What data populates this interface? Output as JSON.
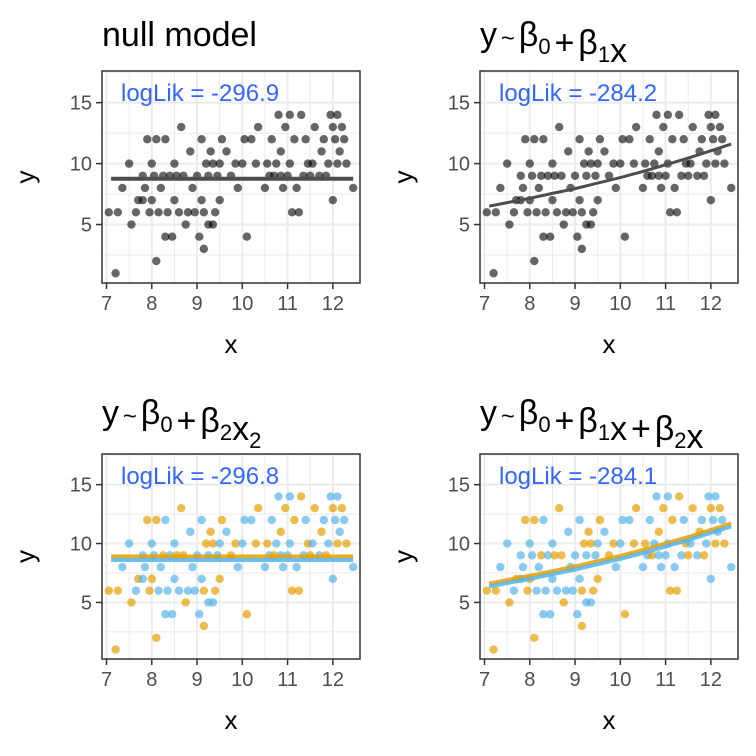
{
  "colors": {
    "black_points": "#000000",
    "orange": "#E69F00",
    "sky_blue": "#56B4E9",
    "fit_line": "#4d4d4d",
    "loglik_text": "#3366FF",
    "panel_border": "#333333",
    "grid": "#ebebeb"
  },
  "axes": {
    "xlabel": "x",
    "ylabel": "y",
    "xlim": [
      6.9,
      12.6
    ],
    "ylim": [
      0.2,
      17.6
    ],
    "xticks": [
      7,
      8,
      9,
      10,
      11,
      12
    ],
    "yticks": [
      5,
      10,
      15
    ],
    "grid": true
  },
  "chart_data": [
    {
      "type": "scatter",
      "title": "null model",
      "loglik": "logLik = -296.9",
      "color_groups": false,
      "fit": {
        "kind": "line",
        "x": [
          7.1,
          12.45
        ],
        "y": [
          8.75,
          8.75
        ]
      }
    },
    {
      "type": "scatter",
      "title": "y ~ β0 + β1x",
      "loglik": "logLik = -284.2",
      "color_groups": false,
      "fit": {
        "kind": "curve",
        "x": [
          7.1,
          7.5,
          8.0,
          8.5,
          9.0,
          9.5,
          10.0,
          10.5,
          11.0,
          11.5,
          12.0,
          12.45
        ],
        "y": [
          6.5,
          6.8,
          7.15,
          7.55,
          7.95,
          8.4,
          8.85,
          9.35,
          9.9,
          10.45,
          11.05,
          11.6
        ]
      }
    },
    {
      "type": "scatter",
      "title": "y ~ β0 + β2x2",
      "loglik": "logLik = -296.8",
      "color_groups": true,
      "fit": {
        "kind": "pair",
        "x": [
          7.1,
          12.45
        ],
        "y_orange": [
          8.9,
          8.9
        ],
        "y_blue": [
          8.6,
          8.6
        ]
      }
    },
    {
      "type": "scatter",
      "title": "y ~ β0 + β1x + β2x",
      "loglik": "logLik = -284.1",
      "color_groups": true,
      "fit": {
        "kind": "pair-curve",
        "x": [
          7.1,
          7.5,
          8.0,
          8.5,
          9.0,
          9.5,
          10.0,
          10.5,
          11.0,
          11.5,
          12.0,
          12.45
        ],
        "y_orange": [
          6.6,
          6.9,
          7.25,
          7.65,
          8.05,
          8.5,
          8.95,
          9.45,
          10.0,
          10.55,
          11.15,
          11.7
        ],
        "y_blue": [
          6.35,
          6.65,
          7.0,
          7.4,
          7.8,
          8.25,
          8.7,
          9.2,
          9.75,
          10.3,
          10.9,
          11.45
        ]
      }
    }
  ],
  "points": [
    {
      "x": 7.05,
      "y": 6,
      "g": "o"
    },
    {
      "x": 7.2,
      "y": 1,
      "g": "o"
    },
    {
      "x": 7.25,
      "y": 6,
      "g": "o"
    },
    {
      "x": 7.35,
      "y": 8,
      "g": "b"
    },
    {
      "x": 7.5,
      "y": 10,
      "g": "b"
    },
    {
      "x": 7.55,
      "y": 5,
      "g": "o"
    },
    {
      "x": 7.65,
      "y": 6,
      "g": "b"
    },
    {
      "x": 7.7,
      "y": 7,
      "g": "o"
    },
    {
      "x": 7.8,
      "y": 7,
      "g": "b"
    },
    {
      "x": 7.8,
      "y": 9,
      "g": "b"
    },
    {
      "x": 7.85,
      "y": 8,
      "g": "b"
    },
    {
      "x": 7.9,
      "y": 12,
      "g": "o"
    },
    {
      "x": 7.95,
      "y": 6,
      "g": "o"
    },
    {
      "x": 8.0,
      "y": 7,
      "g": "o"
    },
    {
      "x": 8.0,
      "y": 10,
      "g": "b"
    },
    {
      "x": 8.05,
      "y": 9,
      "g": "b"
    },
    {
      "x": 8.1,
      "y": 2,
      "g": "o"
    },
    {
      "x": 8.1,
      "y": 12,
      "g": "o"
    },
    {
      "x": 8.15,
      "y": 6,
      "g": "b"
    },
    {
      "x": 8.2,
      "y": 8,
      "g": "b"
    },
    {
      "x": 8.25,
      "y": 9,
      "g": "o"
    },
    {
      "x": 8.3,
      "y": 4,
      "g": "b"
    },
    {
      "x": 8.3,
      "y": 12,
      "g": "b"
    },
    {
      "x": 8.35,
      "y": 6,
      "g": "b"
    },
    {
      "x": 8.4,
      "y": 9,
      "g": "b"
    },
    {
      "x": 8.45,
      "y": 4,
      "g": "b"
    },
    {
      "x": 8.5,
      "y": 7,
      "g": "b"
    },
    {
      "x": 8.5,
      "y": 10,
      "g": "b"
    },
    {
      "x": 8.55,
      "y": 9,
      "g": "o"
    },
    {
      "x": 8.6,
      "y": 6,
      "g": "b"
    },
    {
      "x": 8.65,
      "y": 13,
      "g": "o"
    },
    {
      "x": 8.7,
      "y": 9,
      "g": "o"
    },
    {
      "x": 8.75,
      "y": 5,
      "g": "o"
    },
    {
      "x": 8.8,
      "y": 6,
      "g": "b"
    },
    {
      "x": 8.85,
      "y": 11,
      "g": "b"
    },
    {
      "x": 8.9,
      "y": 8,
      "g": "b"
    },
    {
      "x": 8.95,
      "y": 6,
      "g": "b"
    },
    {
      "x": 9.0,
      "y": 9,
      "g": "b"
    },
    {
      "x": 9.05,
      "y": 4,
      "g": "b"
    },
    {
      "x": 9.1,
      "y": 7,
      "g": "b"
    },
    {
      "x": 9.1,
      "y": 12,
      "g": "b"
    },
    {
      "x": 9.15,
      "y": 6,
      "g": "o"
    },
    {
      "x": 9.15,
      "y": 3,
      "g": "o"
    },
    {
      "x": 9.2,
      "y": 10,
      "g": "o"
    },
    {
      "x": 9.25,
      "y": 5,
      "g": "b"
    },
    {
      "x": 9.25,
      "y": 9,
      "g": "b"
    },
    {
      "x": 9.3,
      "y": 11,
      "g": "o"
    },
    {
      "x": 9.35,
      "y": 5,
      "g": "b"
    },
    {
      "x": 9.35,
      "y": 10,
      "g": "o"
    },
    {
      "x": 9.4,
      "y": 6,
      "g": "o"
    },
    {
      "x": 9.45,
      "y": 9,
      "g": "b"
    },
    {
      "x": 9.5,
      "y": 7,
      "g": "o"
    },
    {
      "x": 9.5,
      "y": 10,
      "g": "b"
    },
    {
      "x": 9.55,
      "y": 12,
      "g": "o"
    },
    {
      "x": 9.65,
      "y": 11,
      "g": "b"
    },
    {
      "x": 9.75,
      "y": 9,
      "g": "o"
    },
    {
      "x": 9.85,
      "y": 10,
      "g": "o"
    },
    {
      "x": 9.9,
      "y": 8,
      "g": "b"
    },
    {
      "x": 10.0,
      "y": 10,
      "g": "b"
    },
    {
      "x": 10.05,
      "y": 12,
      "g": "b"
    },
    {
      "x": 10.1,
      "y": 4,
      "g": "o"
    },
    {
      "x": 10.2,
      "y": 12,
      "g": "b"
    },
    {
      "x": 10.3,
      "y": 10,
      "g": "o"
    },
    {
      "x": 10.35,
      "y": 13,
      "g": "o"
    },
    {
      "x": 10.5,
      "y": 8,
      "g": "b"
    },
    {
      "x": 10.55,
      "y": 10,
      "g": "o"
    },
    {
      "x": 10.6,
      "y": 9,
      "g": "b"
    },
    {
      "x": 10.65,
      "y": 12,
      "g": "b"
    },
    {
      "x": 10.7,
      "y": 9,
      "g": "o"
    },
    {
      "x": 10.75,
      "y": 10,
      "g": "b"
    },
    {
      "x": 10.8,
      "y": 14,
      "g": "b"
    },
    {
      "x": 10.85,
      "y": 9,
      "g": "b"
    },
    {
      "x": 10.85,
      "y": 11,
      "g": "o"
    },
    {
      "x": 10.9,
      "y": 8,
      "g": "b"
    },
    {
      "x": 10.95,
      "y": 13,
      "g": "o"
    },
    {
      "x": 11.0,
      "y": 9,
      "g": "b"
    },
    {
      "x": 11.05,
      "y": 10,
      "g": "b"
    },
    {
      "x": 11.05,
      "y": 14,
      "g": "b"
    },
    {
      "x": 11.1,
      "y": 6,
      "g": "o"
    },
    {
      "x": 11.15,
      "y": 12,
      "g": "o"
    },
    {
      "x": 11.2,
      "y": 8,
      "g": "b"
    },
    {
      "x": 11.25,
      "y": 6,
      "g": "o"
    },
    {
      "x": 11.3,
      "y": 14,
      "g": "o"
    },
    {
      "x": 11.35,
      "y": 9,
      "g": "b"
    },
    {
      "x": 11.4,
      "y": 12,
      "g": "b"
    },
    {
      "x": 11.45,
      "y": 10,
      "g": "o"
    },
    {
      "x": 11.5,
      "y": 9,
      "g": "o"
    },
    {
      "x": 11.55,
      "y": 10,
      "g": "b"
    },
    {
      "x": 11.6,
      "y": 13,
      "g": "o"
    },
    {
      "x": 11.7,
      "y": 9,
      "g": "b"
    },
    {
      "x": 11.75,
      "y": 11,
      "g": "o"
    },
    {
      "x": 11.8,
      "y": 12,
      "g": "b"
    },
    {
      "x": 11.85,
      "y": 9,
      "g": "o"
    },
    {
      "x": 11.9,
      "y": 10,
      "g": "b"
    },
    {
      "x": 11.95,
      "y": 14,
      "g": "b"
    },
    {
      "x": 12.0,
      "y": 13,
      "g": "o"
    },
    {
      "x": 12.0,
      "y": 7,
      "g": "b"
    },
    {
      "x": 12.05,
      "y": 12,
      "g": "b"
    },
    {
      "x": 12.1,
      "y": 14,
      "g": "b"
    },
    {
      "x": 12.1,
      "y": 10,
      "g": "o"
    },
    {
      "x": 12.15,
      "y": 11,
      "g": "b"
    },
    {
      "x": 12.2,
      "y": 13,
      "g": "o"
    },
    {
      "x": 12.25,
      "y": 12,
      "g": "b"
    },
    {
      "x": 12.3,
      "y": 10,
      "g": "o"
    },
    {
      "x": 12.45,
      "y": 8,
      "g": "b"
    }
  ]
}
